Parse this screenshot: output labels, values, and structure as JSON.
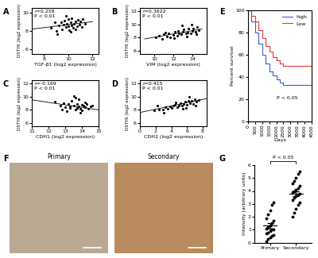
{
  "chart_data": [
    {
      "panel": "A",
      "type": "scatter",
      "x_label": "TGF-β1 (log2 expression)",
      "y_label": "DSTYK (log2 expression)",
      "annotation": [
        "r=0.258",
        "P < 0.01"
      ],
      "color": "#000000",
      "x": [
        8.6,
        9.0,
        9.2,
        9.4,
        9.5,
        9.6,
        9.7,
        9.8,
        9.9,
        10.0,
        10.0,
        10.1,
        10.2,
        10.3,
        10.3,
        10.4,
        10.5,
        10.6,
        10.7,
        10.8,
        10.9,
        11.0,
        11.1,
        11.2,
        9.1,
        9.8,
        10.2,
        10.6,
        8.9,
        11.4
      ],
      "values": [
        8.3,
        8.0,
        8.6,
        8.9,
        8.2,
        8.7,
        9.1,
        8.4,
        8.8,
        8.5,
        9.3,
        8.1,
        8.9,
        8.6,
        9.4,
        8.3,
        8.8,
        9.0,
        8.5,
        9.2,
        8.7,
        9.0,
        8.4,
        9.3,
        7.7,
        9.6,
        7.9,
        8.2,
        8.9,
        8.8
      ],
      "fit_x": [
        7,
        12
      ],
      "fit_y": [
        8.2,
        9.0
      ],
      "xlim": [
        7,
        12.5
      ],
      "ylim": [
        5.5,
        10.5
      ],
      "xticks": [
        8,
        10,
        12
      ],
      "yticks": [
        6,
        8,
        10
      ]
    },
    {
      "panel": "B",
      "type": "scatter",
      "x_label": "VIM (log2 expression)",
      "y_label": "DSTYK (log2 expression)",
      "annotation": [
        "r=0.3622",
        "P < 0.01"
      ],
      "color": "#000000",
      "x": [
        10.2,
        10.5,
        10.8,
        11.0,
        11.3,
        11.5,
        11.7,
        12.0,
        12.2,
        12.4,
        12.6,
        12.8,
        13.0,
        13.1,
        13.3,
        13.5,
        13.6,
        13.8,
        14.0,
        14.1,
        14.3,
        14.5,
        14.7,
        12.1,
        12.9,
        13.4,
        11.2,
        13.9,
        14.4,
        12.5
      ],
      "values": [
        8.0,
        8.3,
        7.8,
        8.5,
        8.2,
        8.6,
        8.1,
        8.4,
        8.9,
        8.3,
        8.7,
        8.5,
        8.9,
        9.2,
        8.6,
        8.8,
        9.4,
        8.7,
        9.0,
        9.3,
        8.9,
        9.6,
        9.1,
        7.9,
        9.8,
        8.2,
        8.8,
        10.0,
        8.5,
        9.0
      ],
      "fit_x": [
        9,
        15
      ],
      "fit_y": [
        7.8,
        9.3
      ],
      "xlim": [
        8.5,
        15.5
      ],
      "ylim": [
        5.5,
        12.5
      ],
      "xticks": [
        10,
        12,
        14
      ],
      "yticks": [
        6,
        8,
        10,
        12
      ]
    },
    {
      "panel": "C",
      "type": "scatter",
      "x_label": "CDH1 (log2 expression)",
      "y_label": "DSTYK (log2 expression)",
      "annotation": [
        "r=-0.169",
        "P < 0.01"
      ],
      "color": "#000000",
      "x": [
        12.4,
        12.7,
        12.9,
        13.0,
        13.2,
        13.3,
        13.4,
        13.5,
        13.6,
        13.7,
        13.8,
        13.8,
        13.9,
        14.0,
        14.0,
        14.1,
        14.2,
        14.3,
        14.4,
        14.5,
        13.1,
        13.6,
        13.9,
        14.2,
        12.8,
        13.5,
        14.1,
        13.3,
        14.6,
        13.7
      ],
      "values": [
        9.2,
        8.6,
        9.0,
        8.4,
        8.9,
        8.3,
        9.3,
        8.7,
        8.1,
        8.9,
        8.5,
        9.6,
        8.2,
        8.8,
        7.9,
        8.6,
        8.4,
        8.9,
        8.2,
        8.5,
        7.8,
        9.8,
        7.6,
        9.1,
        8.1,
        10.1,
        8.7,
        8.5,
        8.6,
        8.3
      ],
      "fit_x": [
        11,
        15
      ],
      "fit_y": [
        9.5,
        8.0
      ],
      "xlim": [
        11,
        15
      ],
      "ylim": [
        5.5,
        12.5
      ],
      "xticks": [
        11,
        12,
        13,
        14,
        15
      ],
      "yticks": [
        6,
        8,
        10,
        12
      ]
    },
    {
      "panel": "D",
      "type": "scatter",
      "x_label": "CDH2 (log2 expression)",
      "y_label": "DSTYK (log2 expression)",
      "annotation": [
        "r=0.415",
        "P < 0.01"
      ],
      "color": "#000000",
      "x": [
        1.8,
        2.4,
        2.9,
        3.2,
        3.5,
        3.8,
        4.0,
        4.3,
        4.5,
        4.8,
        5.0,
        5.2,
        5.4,
        5.6,
        5.8,
        6.0,
        6.2,
        6.4,
        6.6,
        6.8,
        7.0,
        7.2,
        7.5,
        3.0,
        4.6,
        5.5,
        6.3,
        7.1,
        2.2,
        5.9
      ],
      "values": [
        7.9,
        8.1,
        8.0,
        8.4,
        8.2,
        8.5,
        8.3,
        8.6,
        8.8,
        8.4,
        8.7,
        9.0,
        8.6,
        8.9,
        9.2,
        8.8,
        9.4,
        9.0,
        9.3,
        8.9,
        9.6,
        9.2,
        9.5,
        7.6,
        9.1,
        8.2,
        9.9,
        8.7,
        8.6,
        8.3
      ],
      "fit_x": [
        0,
        8.5
      ],
      "fit_y": [
        7.6,
        9.7
      ],
      "xlim": [
        0,
        8.5
      ],
      "ylim": [
        5.5,
        12.5
      ],
      "xticks": [
        0,
        2,
        4,
        6,
        8
      ],
      "yticks": [
        6,
        8,
        10,
        12
      ]
    },
    {
      "panel": "E",
      "type": "line",
      "x_label": "Days",
      "y_label": "Percent survival",
      "annotation": [
        "P < 0.05"
      ],
      "line_style": "steps",
      "legend": "upper right",
      "x": [
        0,
        250,
        500,
        750,
        1000,
        1250,
        1500,
        1750,
        2000,
        2250,
        2500,
        3000,
        3500,
        4000,
        4500
      ],
      "series": [
        {
          "name": "high",
          "color": "#3a5fcd",
          "values": [
            100,
            90,
            80,
            70,
            60,
            52,
            45,
            41,
            38,
            35,
            33,
            33,
            33,
            33,
            null
          ]
        },
        {
          "name": "Low",
          "color": "#e8343a",
          "values": [
            100,
            95,
            90,
            82,
            75,
            68,
            63,
            58,
            55,
            52,
            50,
            50,
            50,
            50,
            50
          ]
        }
      ],
      "xlim": [
        0,
        4500
      ],
      "ylim": [
        0,
        100
      ],
      "xticks": [
        0,
        500,
        1000,
        1500,
        2000,
        2500,
        3000,
        3500,
        4000,
        4500
      ],
      "yticks": [
        0,
        20,
        40,
        60,
        80,
        100
      ]
    },
    {
      "panel": "F",
      "type": "image",
      "categories": [
        "Primary",
        "Secondary"
      ],
      "colors": [
        "#b9a993",
        "#b98a5e"
      ]
    },
    {
      "panel": "G",
      "type": "dot",
      "categories": [
        "Primary",
        "Secondary"
      ],
      "y_label": "Intensity (arbitrary units)",
      "annotation": [
        "P < 0.05"
      ],
      "color": "#000000",
      "points": [
        [
          0.1,
          0.3,
          0.4,
          0.5,
          0.6,
          0.7,
          0.8,
          0.9,
          1.0,
          1.0,
          1.1,
          1.2,
          1.3,
          1.5,
          1.7,
          1.9,
          2.2,
          2.5,
          2.9,
          3.1
        ],
        [
          2.0,
          2.3,
          2.6,
          2.9,
          3.1,
          3.3,
          3.5,
          3.6,
          3.7,
          3.8,
          3.9,
          4.0,
          4.1,
          4.2,
          4.4,
          4.6,
          4.8,
          5.0,
          5.3,
          5.5
        ]
      ],
      "means": [
        1.3,
        3.8
      ],
      "errors": [
        0.2,
        0.2
      ],
      "ylim": [
        0,
        6
      ],
      "yticks": [
        0,
        1,
        2,
        3,
        4,
        5,
        6
      ]
    }
  ]
}
